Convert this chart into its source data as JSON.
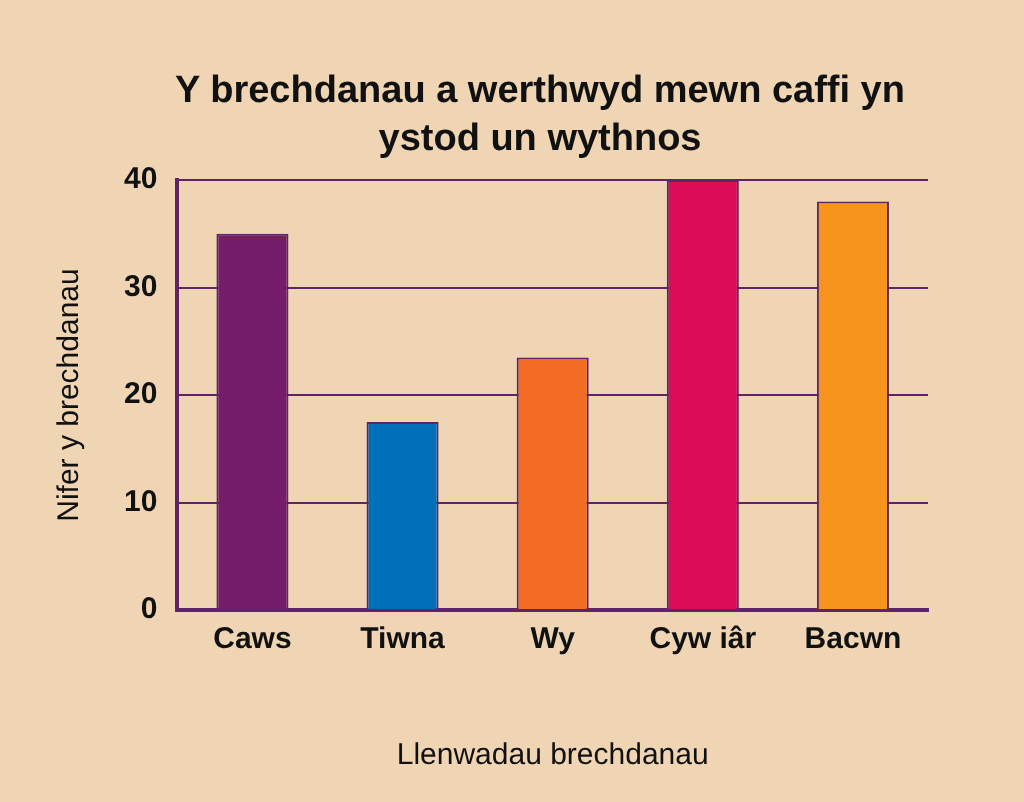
{
  "chart_data": {
    "type": "bar",
    "title": "Y brechdanau a werthwyd mewn caffi yn ystod un wythnos",
    "xlabel": "Llenwadau brechdanau",
    "ylabel": "Nifer y brechdanau",
    "categories": [
      "Caws",
      "Tiwna",
      "Wy",
      "Cyw iâr",
      "Bacwn"
    ],
    "values": [
      35,
      17.5,
      23.5,
      40,
      38
    ],
    "colors": [
      "#751c6b",
      "#0070bb",
      "#f26c23",
      "#db0c58",
      "#f7941d"
    ],
    "ylim": [
      0,
      40
    ],
    "yticks": [
      0,
      10,
      20,
      30,
      40
    ],
    "grid": "y",
    "legend": false
  }
}
